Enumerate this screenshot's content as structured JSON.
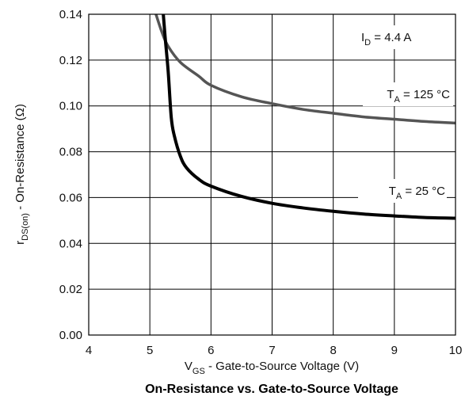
{
  "chart_data": {
    "type": "line",
    "title": "On-Resistance vs. Gate-to-Source Voltage",
    "xlabel": {
      "main": "V",
      "sub": "GS",
      "rest": " - Gate-to-Source Voltage (V)"
    },
    "ylabel": {
      "main": "r",
      "sub": "DS(on)",
      "rest": " - On-Resistance (Ω)"
    },
    "xlim": [
      4,
      10
    ],
    "ylim": [
      0,
      0.14
    ],
    "x_ticks": [
      "4",
      "5",
      "6",
      "7",
      "8",
      "9",
      "10"
    ],
    "y_ticks": [
      "0.00",
      "0.02",
      "0.04",
      "0.06",
      "0.08",
      "0.10",
      "0.12",
      "0.14"
    ],
    "grid": true,
    "annotations": {
      "id": {
        "main": "I",
        "sub": "D",
        "rest": " = 4.4 A"
      }
    },
    "series": [
      {
        "name": {
          "main": "T",
          "sub": "A",
          "rest": " = 125 °C"
        },
        "color": "#555555",
        "points": [
          [
            5.1,
            0.14
          ],
          [
            5.2,
            0.132
          ],
          [
            5.3,
            0.126
          ],
          [
            5.5,
            0.119
          ],
          [
            5.8,
            0.113
          ],
          [
            6.0,
            0.109
          ],
          [
            6.5,
            0.104
          ],
          [
            7.0,
            0.101
          ],
          [
            7.5,
            0.0985
          ],
          [
            8.0,
            0.0968
          ],
          [
            8.5,
            0.0952
          ],
          [
            9.0,
            0.0942
          ],
          [
            9.5,
            0.0932
          ],
          [
            10.0,
            0.0925
          ]
        ]
      },
      {
        "name": {
          "main": "T",
          "sub": "A",
          "rest": " = 25 °C"
        },
        "color": "#000000",
        "points": [
          [
            5.22,
            0.14
          ],
          [
            5.25,
            0.13
          ],
          [
            5.3,
            0.115
          ],
          [
            5.35,
            0.095
          ],
          [
            5.4,
            0.087
          ],
          [
            5.5,
            0.078
          ],
          [
            5.6,
            0.073
          ],
          [
            5.8,
            0.068
          ],
          [
            6.0,
            0.065
          ],
          [
            6.5,
            0.0605
          ],
          [
            7.0,
            0.0575
          ],
          [
            7.5,
            0.0555
          ],
          [
            8.0,
            0.054
          ],
          [
            8.5,
            0.0528
          ],
          [
            9.0,
            0.052
          ],
          [
            9.5,
            0.0513
          ],
          [
            10.0,
            0.051
          ]
        ]
      }
    ]
  }
}
